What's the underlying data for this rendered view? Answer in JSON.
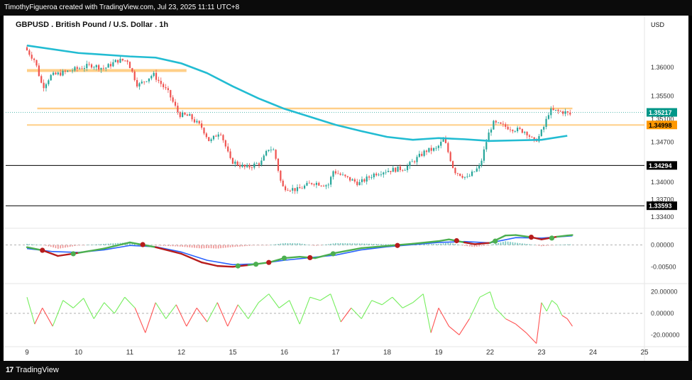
{
  "header": {
    "caption": "TimothyFigueroa created with TradingView.com, Jul 23, 2025 11:11 UTC+8"
  },
  "footer": {
    "logo_mark": "17",
    "logo_text": "TradingView"
  },
  "colors": {
    "up_candle": "#26a69a",
    "down_candle": "#ef5350",
    "moving_average": "#22bcd2",
    "resistance_zone": "#ffc773",
    "support_line": "#000000",
    "macd_signal": "#2962ff",
    "macd_line_up": "#4caf50",
    "macd_line_down": "#b71c1c",
    "oscillator_up": "#76ee5e",
    "oscillator_down": "#ff5252",
    "price_tag_current": "#009688",
    "price_tag_orange": "#ff9800"
  },
  "chart_data": [
    {
      "type": "candlestick",
      "title": "GBPUSD . British Pound / U.S. Dollar . 1h",
      "currency": "USD",
      "y_ticks": [
        "1.36000",
        "1.35500",
        "1.35100",
        "1.34700",
        "1.34000",
        "1.33700",
        "1.33400"
      ],
      "ylim": [
        1.3325,
        1.3658
      ],
      "x_tick_labels": [
        "9",
        "10",
        "11",
        "12",
        "15",
        "16",
        "17",
        "18",
        "19",
        "22",
        "23",
        "24",
        "25"
      ],
      "price_path": [
        {
          "x": 0.0,
          "y": 1.3635
        },
        {
          "x": 0.2,
          "y": 1.3612
        },
        {
          "x": 0.35,
          "y": 1.3565
        },
        {
          "x": 0.5,
          "y": 1.3585
        },
        {
          "x": 0.8,
          "y": 1.3592
        },
        {
          "x": 1.0,
          "y": 1.3597
        },
        {
          "x": 1.3,
          "y": 1.3604
        },
        {
          "x": 1.55,
          "y": 1.3598
        },
        {
          "x": 1.8,
          "y": 1.3612
        },
        {
          "x": 2.0,
          "y": 1.3612
        },
        {
          "x": 2.2,
          "y": 1.3568
        },
        {
          "x": 2.5,
          "y": 1.3588
        },
        {
          "x": 2.8,
          "y": 1.3555
        },
        {
          "x": 3.0,
          "y": 1.3518
        },
        {
          "x": 3.2,
          "y": 1.3515
        },
        {
          "x": 3.45,
          "y": 1.3495
        },
        {
          "x": 3.6,
          "y": 1.347
        },
        {
          "x": 3.8,
          "y": 1.349
        },
        {
          "x": 4.0,
          "y": 1.3438
        },
        {
          "x": 4.3,
          "y": 1.3425
        },
        {
          "x": 4.6,
          "y": 1.3435
        },
        {
          "x": 4.75,
          "y": 1.346
        },
        {
          "x": 4.85,
          "y": 1.3455
        },
        {
          "x": 5.0,
          "y": 1.3392
        },
        {
          "x": 5.3,
          "y": 1.3387
        },
        {
          "x": 5.6,
          "y": 1.34
        },
        {
          "x": 5.9,
          "y": 1.3395
        },
        {
          "x": 6.0,
          "y": 1.342
        },
        {
          "x": 6.2,
          "y": 1.341
        },
        {
          "x": 6.5,
          "y": 1.3398
        },
        {
          "x": 6.8,
          "y": 1.3415
        },
        {
          "x": 7.0,
          "y": 1.342
        },
        {
          "x": 7.4,
          "y": 1.3425
        },
        {
          "x": 7.8,
          "y": 1.3455
        },
        {
          "x": 8.0,
          "y": 1.3458
        },
        {
          "x": 8.15,
          "y": 1.3475
        },
        {
          "x": 8.35,
          "y": 1.342
        },
        {
          "x": 8.6,
          "y": 1.3407
        },
        {
          "x": 8.85,
          "y": 1.3428
        },
        {
          "x": 9.0,
          "y": 1.348
        },
        {
          "x": 9.1,
          "y": 1.3503
        },
        {
          "x": 9.5,
          "y": 1.3493
        },
        {
          "x": 9.75,
          "y": 1.3488
        },
        {
          "x": 9.9,
          "y": 1.347
        },
        {
          "x": 10.0,
          "y": 1.348
        },
        {
          "x": 10.1,
          "y": 1.3498
        },
        {
          "x": 10.2,
          "y": 1.3525
        },
        {
          "x": 10.5,
          "y": 1.3522
        },
        {
          "x": 10.6,
          "y": 1.3518
        }
      ],
      "moving_average": [
        {
          "x": 0.0,
          "y": 1.3638
        },
        {
          "x": 1.0,
          "y": 1.3625
        },
        {
          "x": 2.0,
          "y": 1.3619
        },
        {
          "x": 2.5,
          "y": 1.3617
        },
        {
          "x": 3.0,
          "y": 1.3607
        },
        {
          "x": 3.5,
          "y": 1.359
        },
        {
          "x": 4.0,
          "y": 1.3567
        },
        {
          "x": 4.5,
          "y": 1.3546
        },
        {
          "x": 5.0,
          "y": 1.3528
        },
        {
          "x": 5.5,
          "y": 1.3514
        },
        {
          "x": 6.0,
          "y": 1.35
        },
        {
          "x": 6.5,
          "y": 1.3489
        },
        {
          "x": 7.0,
          "y": 1.3479
        },
        {
          "x": 7.5,
          "y": 1.3474
        },
        {
          "x": 8.0,
          "y": 1.3477
        },
        {
          "x": 8.5,
          "y": 1.3475
        },
        {
          "x": 9.0,
          "y": 1.3472
        },
        {
          "x": 9.5,
          "y": 1.3473
        },
        {
          "x": 10.0,
          "y": 1.3474
        },
        {
          "x": 10.5,
          "y": 1.3481
        }
      ],
      "horizontal_levels": [
        {
          "kind": "zone",
          "x_start": 0.0,
          "x_end": 3.1,
          "y_low": 1.3592,
          "y_high": 1.3597
        },
        {
          "kind": "zone",
          "x_start": 0.2,
          "x_end": 10.6,
          "y_low": 1.3527,
          "y_high": 1.353
        },
        {
          "kind": "zone",
          "x_start": 0.0,
          "x_end": 12.3,
          "y_low": 1.34985,
          "y_high": 1.3501
        },
        {
          "kind": "line",
          "y": 1.34294
        },
        {
          "kind": "line",
          "y": 1.33593
        }
      ],
      "price_labels": [
        {
          "text": "1.35217",
          "value": 1.35217,
          "style": "current"
        },
        {
          "text": "1.34998",
          "value": 1.34998,
          "style": "orange"
        },
        {
          "text": "1.34294",
          "value": 1.34294,
          "style": "black"
        },
        {
          "text": "1.33593",
          "value": 1.33593,
          "style": "black"
        }
      ]
    },
    {
      "type": "line",
      "panel": "macd",
      "y_ticks": [
        "0.00000",
        "-0.00500"
      ],
      "ylim": [
        -0.0082,
        0.0032
      ],
      "zero_line": 0,
      "macd_line": [
        {
          "x": 0.0,
          "y": -0.0005
        },
        {
          "x": 0.3,
          "y": -0.0012
        },
        {
          "x": 0.6,
          "y": -0.0025
        },
        {
          "x": 1.0,
          "y": -0.0018
        },
        {
          "x": 1.5,
          "y": -0.0008
        },
        {
          "x": 2.0,
          "y": 0.0006
        },
        {
          "x": 2.5,
          "y": -0.0005
        },
        {
          "x": 3.0,
          "y": -0.002
        },
        {
          "x": 3.4,
          "y": -0.004
        },
        {
          "x": 3.7,
          "y": -0.0048
        },
        {
          "x": 4.0,
          "y": -0.005
        },
        {
          "x": 4.3,
          "y": -0.0046
        },
        {
          "x": 4.7,
          "y": -0.004
        },
        {
          "x": 5.0,
          "y": -0.003
        },
        {
          "x": 5.3,
          "y": -0.0027
        },
        {
          "x": 5.6,
          "y": -0.003
        },
        {
          "x": 6.0,
          "y": -0.0018
        },
        {
          "x": 6.5,
          "y": -0.0007
        },
        {
          "x": 7.0,
          "y": -0.0002
        },
        {
          "x": 7.5,
          "y": 0.0003
        },
        {
          "x": 8.0,
          "y": 0.0009
        },
        {
          "x": 8.2,
          "y": 0.0013
        },
        {
          "x": 8.5,
          "y": 0.0006
        },
        {
          "x": 8.7,
          "y": 0.0002
        },
        {
          "x": 9.0,
          "y": 0.0005
        },
        {
          "x": 9.3,
          "y": 0.0022
        },
        {
          "x": 9.5,
          "y": 0.0023
        },
        {
          "x": 9.8,
          "y": 0.0018
        },
        {
          "x": 10.0,
          "y": 0.0013
        },
        {
          "x": 10.3,
          "y": 0.0019
        },
        {
          "x": 10.5,
          "y": 0.0022
        },
        {
          "x": 10.6,
          "y": 0.0023
        }
      ],
      "signal_line": [
        {
          "x": 0.0,
          "y": -0.0008
        },
        {
          "x": 0.5,
          "y": -0.0015
        },
        {
          "x": 1.0,
          "y": -0.0017
        },
        {
          "x": 1.5,
          "y": -0.0011
        },
        {
          "x": 2.0,
          "y": -0.0001
        },
        {
          "x": 2.5,
          "y": -0.0004
        },
        {
          "x": 3.0,
          "y": -0.0016
        },
        {
          "x": 3.5,
          "y": -0.0035
        },
        {
          "x": 4.0,
          "y": -0.0045
        },
        {
          "x": 4.5,
          "y": -0.0043
        },
        {
          "x": 5.0,
          "y": -0.0035
        },
        {
          "x": 5.5,
          "y": -0.0029
        },
        {
          "x": 6.0,
          "y": -0.0023
        },
        {
          "x": 6.5,
          "y": -0.0011
        },
        {
          "x": 7.0,
          "y": -0.0004
        },
        {
          "x": 7.5,
          "y": 0.0001
        },
        {
          "x": 8.0,
          "y": 0.0006
        },
        {
          "x": 8.5,
          "y": 0.0008
        },
        {
          "x": 9.0,
          "y": 0.0005
        },
        {
          "x": 9.5,
          "y": 0.0017
        },
        {
          "x": 10.0,
          "y": 0.0016
        },
        {
          "x": 10.6,
          "y": 0.0021
        }
      ],
      "cross_markers": [
        {
          "x": 0.3,
          "y": -0.0012,
          "color": "down"
        },
        {
          "x": 0.9,
          "y": -0.002,
          "color": "up"
        },
        {
          "x": 2.25,
          "y": 0.0001,
          "color": "down"
        },
        {
          "x": 4.1,
          "y": -0.0048,
          "color": "up"
        },
        {
          "x": 4.45,
          "y": -0.0044,
          "color": "up"
        },
        {
          "x": 4.7,
          "y": -0.004,
          "color": "down"
        },
        {
          "x": 5.0,
          "y": -0.003,
          "color": "up"
        },
        {
          "x": 5.5,
          "y": -0.0029,
          "color": "down"
        },
        {
          "x": 5.95,
          "y": -0.002,
          "color": "up"
        },
        {
          "x": 7.2,
          "y": -0.0001,
          "color": "down"
        },
        {
          "x": 8.35,
          "y": 0.001,
          "color": "down"
        },
        {
          "x": 9.1,
          "y": 0.0009,
          "color": "up"
        },
        {
          "x": 9.8,
          "y": 0.0018,
          "color": "down"
        },
        {
          "x": 10.2,
          "y": 0.0016,
          "color": "up"
        }
      ]
    },
    {
      "type": "line",
      "panel": "oscillator",
      "y_ticks": [
        "20.00000",
        "0.00000",
        "-20.00000"
      ],
      "ylim": [
        -29,
        25
      ],
      "zero_line": 0,
      "values": [
        {
          "x": 0.0,
          "y": 15
        },
        {
          "x": 0.15,
          "y": -10
        },
        {
          "x": 0.3,
          "y": 5
        },
        {
          "x": 0.5,
          "y": -12
        },
        {
          "x": 0.7,
          "y": 12
        },
        {
          "x": 0.9,
          "y": 5
        },
        {
          "x": 1.1,
          "y": 14
        },
        {
          "x": 1.3,
          "y": -5
        },
        {
          "x": 1.5,
          "y": 10
        },
        {
          "x": 1.7,
          "y": 0
        },
        {
          "x": 1.9,
          "y": 15
        },
        {
          "x": 2.1,
          "y": 5
        },
        {
          "x": 2.3,
          "y": -18
        },
        {
          "x": 2.5,
          "y": 10
        },
        {
          "x": 2.7,
          "y": -5
        },
        {
          "x": 2.9,
          "y": 8
        },
        {
          "x": 3.1,
          "y": -12
        },
        {
          "x": 3.3,
          "y": 5
        },
        {
          "x": 3.5,
          "y": -8
        },
        {
          "x": 3.7,
          "y": 10
        },
        {
          "x": 3.9,
          "y": -12
        },
        {
          "x": 4.1,
          "y": 8
        },
        {
          "x": 4.3,
          "y": -5
        },
        {
          "x": 4.5,
          "y": 10
        },
        {
          "x": 4.7,
          "y": 18
        },
        {
          "x": 4.9,
          "y": 5
        },
        {
          "x": 5.1,
          "y": 12
        },
        {
          "x": 5.3,
          "y": -10
        },
        {
          "x": 5.5,
          "y": 15
        },
        {
          "x": 5.7,
          "y": 12
        },
        {
          "x": 5.9,
          "y": 18
        },
        {
          "x": 6.1,
          "y": -8
        },
        {
          "x": 6.3,
          "y": 5
        },
        {
          "x": 6.5,
          "y": -5
        },
        {
          "x": 6.7,
          "y": 12
        },
        {
          "x": 6.9,
          "y": 8
        },
        {
          "x": 7.1,
          "y": 15
        },
        {
          "x": 7.3,
          "y": 5
        },
        {
          "x": 7.5,
          "y": 10
        },
        {
          "x": 7.7,
          "y": 18
        },
        {
          "x": 7.85,
          "y": -18
        },
        {
          "x": 8.0,
          "y": 5
        },
        {
          "x": 8.2,
          "y": -12
        },
        {
          "x": 8.4,
          "y": -20
        },
        {
          "x": 8.6,
          "y": -5
        },
        {
          "x": 8.8,
          "y": 15
        },
        {
          "x": 9.0,
          "y": 20
        },
        {
          "x": 9.1,
          "y": 5
        },
        {
          "x": 9.3,
          "y": -5
        },
        {
          "x": 9.5,
          "y": -10
        },
        {
          "x": 9.7,
          "y": -18
        },
        {
          "x": 9.9,
          "y": -28
        },
        {
          "x": 10.0,
          "y": 10
        },
        {
          "x": 10.1,
          "y": 2
        },
        {
          "x": 10.2,
          "y": 12
        },
        {
          "x": 10.3,
          "y": 8
        },
        {
          "x": 10.4,
          "y": -2
        },
        {
          "x": 10.5,
          "y": -5
        },
        {
          "x": 10.6,
          "y": -12
        }
      ]
    }
  ]
}
